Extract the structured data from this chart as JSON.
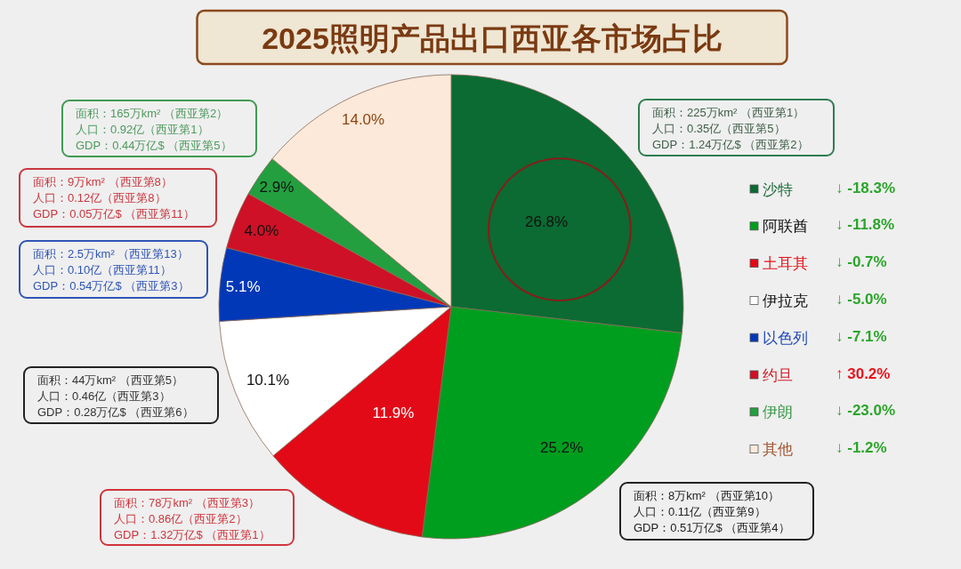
{
  "chart_data": {
    "type": "pie",
    "title": "2025照明产品出口西亚各市场占比",
    "categories": [
      "沙特",
      "阿联酋",
      "土耳其",
      "伊拉克",
      "以色列",
      "约旦",
      "伊朗",
      "其他"
    ],
    "values": [
      26.8,
      25.2,
      11.9,
      10.1,
      5.1,
      4.0,
      2.9,
      14.0
    ],
    "colors": [
      "#0b6b32",
      "#009e1f",
      "#e30a17",
      "#ffffff",
      "#0038b8",
      "#ce1126",
      "#239f40",
      "#fde9d9"
    ],
    "value_labels": [
      "26.8%",
      "25.2%",
      "11.9%",
      "10.1%",
      "5.1%",
      "4.0%",
      "2.9%",
      "14.0%"
    ],
    "legend": "right",
    "annotations": [
      "面积：225万km² （西亚第1）",
      "人口：0.35亿（西亚第5）",
      "GDP：1.24万亿$ （西亚第2）",
      "面积：8万km² （西亚第10）",
      "人口：0.11亿（西亚第9）",
      "GDP：0.51万亿$ （西亚第4）",
      "面积：78万km² （西亚第3）",
      "人口：0.86亿（西亚第2）",
      "GDP：1.32万亿$ （西亚第1）",
      "面积：44万km² （西亚第5）",
      "人口：0.46亿（西亚第3）",
      "GDP：0.28万亿$ （西亚第6）",
      "面积：2.5万km² （西亚第13）",
      "人口：0.10亿（西亚第11）",
      "GDP：0.54万亿$ （西亚第3）",
      "面积：9万km² （西亚第8）",
      "人口：0.12亿（西亚第8）",
      "GDP：0.05万亿$ （西亚第11）",
      "面积：165万km² （西亚第2）",
      "人口：0.92亿（西亚第1）",
      "GDP：0.44万亿$ （西亚第5）",
      "↓ -18.3%",
      "↓ -11.8%",
      "↓ -0.7%",
      "↓ -5.0%",
      "↓ -7.1%",
      "↑ 30.2%",
      "↓ -23.0%",
      "↓ -1.2%"
    ]
  }
}
